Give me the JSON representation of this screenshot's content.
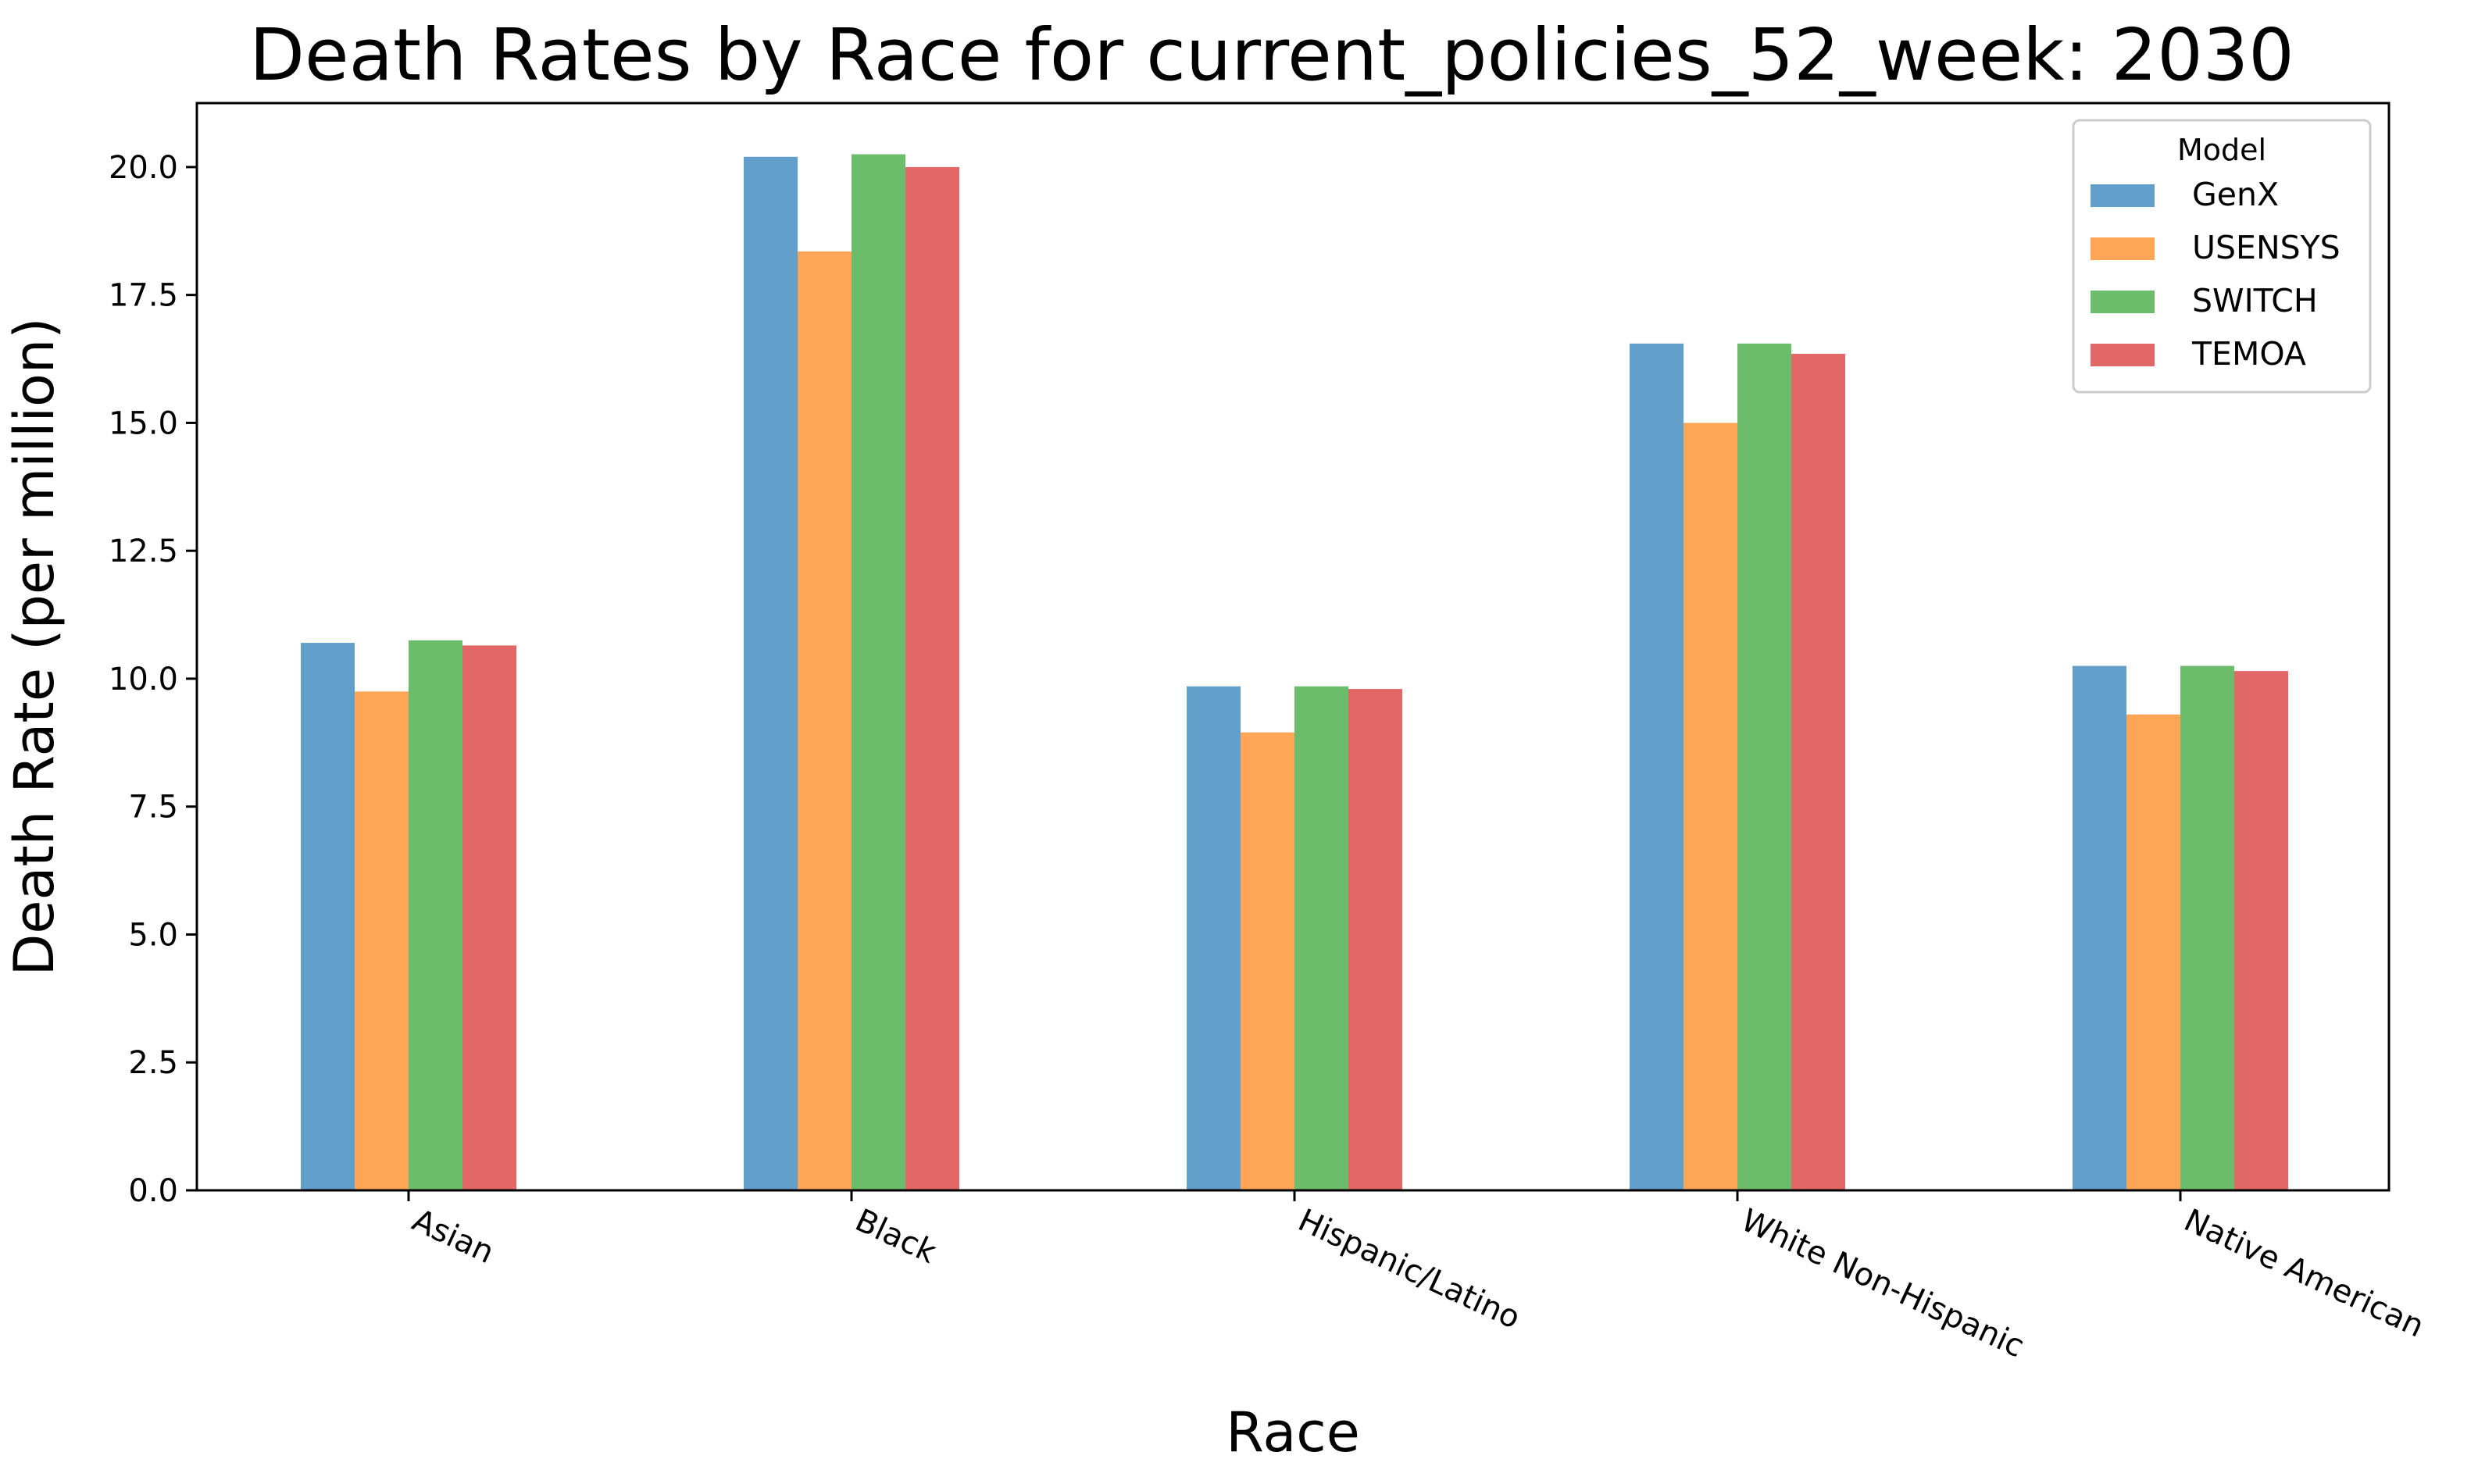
{
  "chart_data": {
    "type": "bar",
    "title": "Death Rates by Race for current_policies_52_week: 2030",
    "xlabel": "Race",
    "ylabel": "Death Rate (per million)",
    "ylim": [
      0,
      21.25
    ],
    "yticks": [
      "0.0",
      "2.5",
      "5.0",
      "7.5",
      "10.0",
      "12.5",
      "15.0",
      "17.5",
      "20.0"
    ],
    "ytick_values": [
      0,
      2.5,
      5,
      7.5,
      10,
      12.5,
      15,
      17.5,
      20
    ],
    "categories": [
      "Asian",
      "Black",
      "Hispanic/Latino",
      "White Non-Hispanic",
      "Native American"
    ],
    "grid": false,
    "legend": {
      "title": "Model",
      "position": "top-right"
    },
    "series": [
      {
        "name": "GenX",
        "color": "#629fca",
        "values": [
          10.7,
          20.2,
          9.85,
          16.55,
          10.25
        ]
      },
      {
        "name": "USENSYS",
        "color": "#ffa556",
        "values": [
          9.75,
          18.35,
          8.95,
          15.0,
          9.3
        ]
      },
      {
        "name": "SWITCH",
        "color": "#6bbc6b",
        "values": [
          10.75,
          20.25,
          9.85,
          16.55,
          10.25
        ]
      },
      {
        "name": "TEMOA",
        "color": "#e26868",
        "values": [
          10.65,
          20.0,
          9.8,
          16.35,
          10.15
        ]
      }
    ]
  }
}
